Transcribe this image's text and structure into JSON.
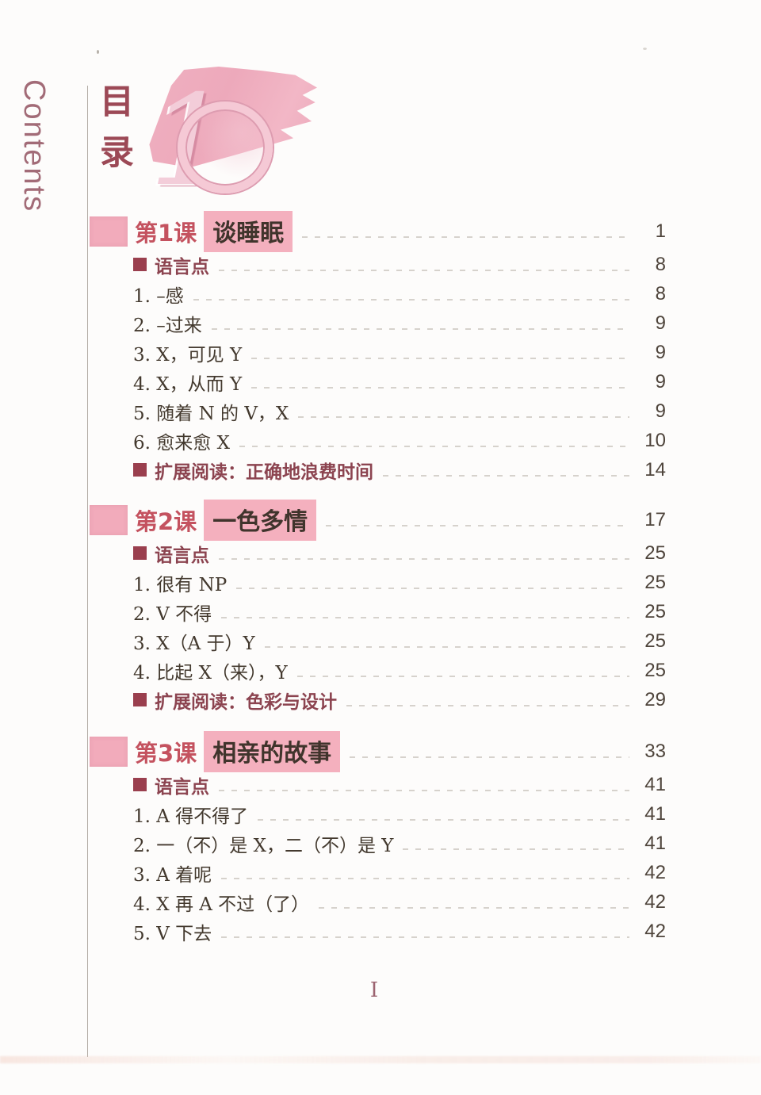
{
  "header": {
    "contents_label": "Contents",
    "title_cn": "目录",
    "badge_number": "10",
    "badge_number_first": "1"
  },
  "footer": {
    "page_label": "I"
  },
  "colors": {
    "accent_pink": "#f2abbb",
    "highlight_pink": "#f4b0be",
    "brush_pink": "#eda9bb",
    "lesson_red": "#c4525f",
    "maroon_square": "#9a3f4e",
    "subheading_text": "#8c4450",
    "item_text": "#43392e",
    "page_number_text": "#4e443b",
    "contents_text": "#a26b77",
    "title_cn_text": "#9c4956",
    "leader_gray": "#cdc7c1",
    "footer_text": "#9c6370"
  },
  "toc": {
    "sections": [
      {
        "lesson_label": "第1课",
        "lesson_title": "谈睡眠",
        "lesson_page": "1",
        "items": [
          {
            "kind": "subheading",
            "label": "语言点",
            "page": "8"
          },
          {
            "kind": "item",
            "label": "1. –感",
            "page": "8"
          },
          {
            "kind": "item",
            "label": "2. –过来",
            "page": "9"
          },
          {
            "kind": "item",
            "label": "3. X，可见 Y",
            "page": "9"
          },
          {
            "kind": "item",
            "label": "4. X，从而 Y",
            "page": "9"
          },
          {
            "kind": "item",
            "label": "5. 随着 N 的 V，X",
            "page": "9"
          },
          {
            "kind": "item",
            "label": "6. 愈来愈 X",
            "page": "10"
          },
          {
            "kind": "subheading",
            "label": "扩展阅读：正确地浪费时间",
            "page": "14"
          }
        ]
      },
      {
        "lesson_label": "第2课",
        "lesson_title": "一色多情",
        "lesson_page": "17",
        "items": [
          {
            "kind": "subheading",
            "label": "语言点",
            "page": "25"
          },
          {
            "kind": "item",
            "label": "1. 很有 NP",
            "page": "25"
          },
          {
            "kind": "item",
            "label": "2. V 不得",
            "page": "25"
          },
          {
            "kind": "item",
            "label": "3. X（A 于）Y",
            "page": "25"
          },
          {
            "kind": "item",
            "label": "4. 比起 X（来），Y",
            "page": "25"
          },
          {
            "kind": "subheading",
            "label": "扩展阅读：色彩与设计",
            "page": "29"
          }
        ]
      },
      {
        "lesson_label": "第3课",
        "lesson_title": "相亲的故事",
        "lesson_page": "33",
        "items": [
          {
            "kind": "subheading",
            "label": "语言点",
            "page": "41"
          },
          {
            "kind": "item",
            "label": "1. A 得不得了",
            "page": "41"
          },
          {
            "kind": "item",
            "label": "2. 一（不）是 X，二（不）是 Y",
            "page": "41"
          },
          {
            "kind": "item",
            "label": "3. A 着呢",
            "page": "42"
          },
          {
            "kind": "item",
            "label": "4. X 再 A 不过（了）",
            "page": "42"
          },
          {
            "kind": "item",
            "label": "5. V 下去",
            "page": "42"
          }
        ]
      }
    ]
  }
}
